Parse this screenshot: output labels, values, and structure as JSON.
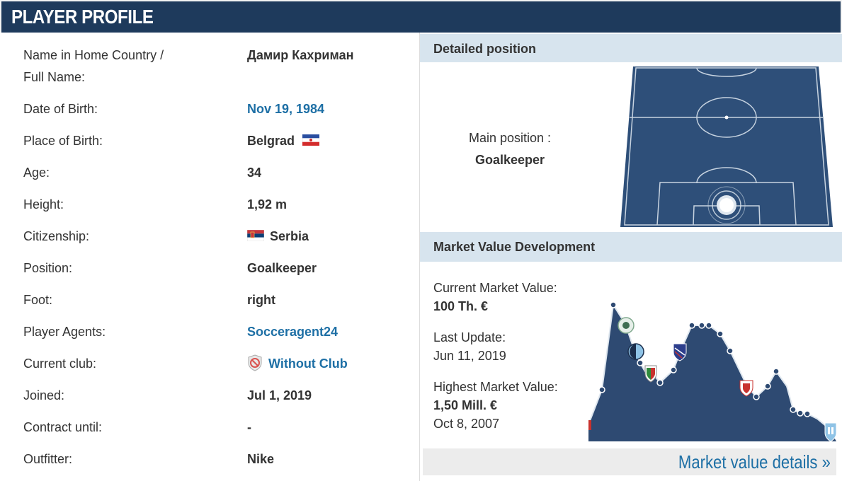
{
  "header": {
    "title": "PLAYER PROFILE"
  },
  "profile": {
    "rows": [
      {
        "label": "Name in Home Country /",
        "label2": "Full Name:",
        "value": "Дамир Кахриман"
      },
      {
        "label": "Date of Birth:",
        "value": "Nov 19, 1984"
      },
      {
        "label": "Place of Birth:",
        "value": "Belgrad"
      },
      {
        "label": "Age:",
        "value": "34"
      },
      {
        "label": "Height:",
        "value": "1,92 m"
      },
      {
        "label": "Citizenship:",
        "value": "Serbia"
      },
      {
        "label": "Position:",
        "value": "Goalkeeper"
      },
      {
        "label": "Foot:",
        "value": "right"
      },
      {
        "label": "Player Agents:",
        "value": "Socceragent24"
      },
      {
        "label": "Current club:",
        "value": "Without Club"
      },
      {
        "label": "Joined:",
        "value": "Jul 1, 2019"
      },
      {
        "label": "Contract until:",
        "value": "-"
      },
      {
        "label": "Outfitter:",
        "value": "Nike"
      }
    ]
  },
  "position": {
    "heading": "Detailed position",
    "main_label": "Main position :",
    "main_value": "Goalkeeper"
  },
  "market": {
    "heading": "Market Value Development",
    "current_label": "Current Market Value:",
    "current_value": "100 Th. €",
    "update_label": "Last Update:",
    "update_value": "Jun 11, 2019",
    "highest_label": "Highest Market Value:",
    "highest_value": "1,50 Mill. €",
    "highest_date": "Oct 8, 2007",
    "details_link": "Market value details »"
  },
  "colors": {
    "header_bg": "#1e3a5c",
    "link": "#1d6fa5",
    "pitch": "#2e4f79",
    "chart_fill": "#2e4a72",
    "section_head_bg": "#d7e4ee"
  }
}
